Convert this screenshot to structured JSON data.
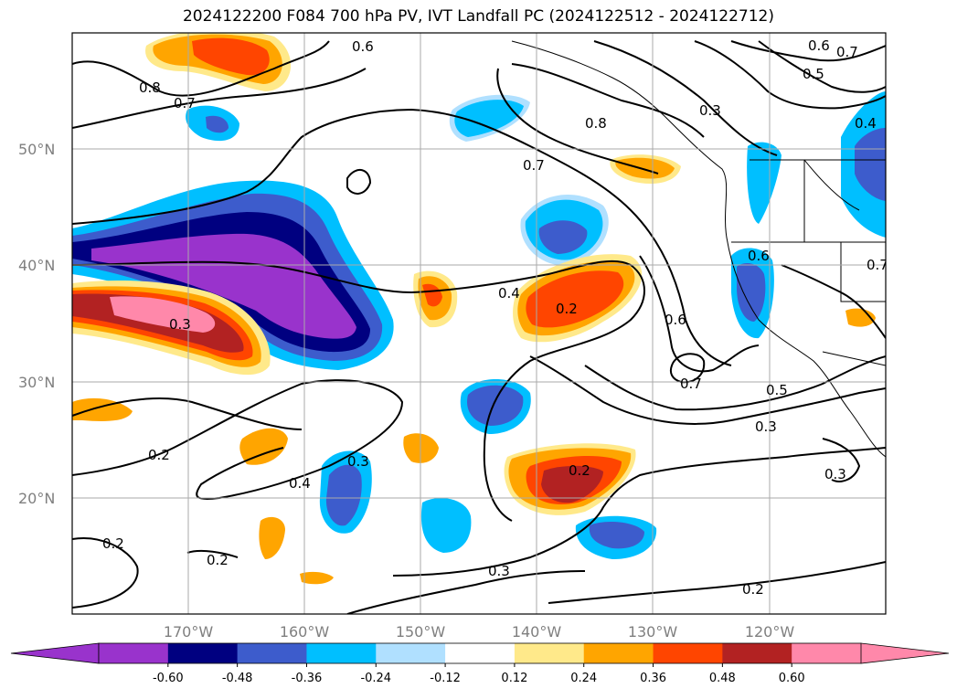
{
  "title": "2024122200 F084 700 hPa PV, IVT Landfall PC (2024122512 - 2024122712)",
  "map": {
    "lat_ticks": [
      "50°N",
      "40°N",
      "30°N",
      "20°N"
    ],
    "lon_ticks": [
      "170°W",
      "160°W",
      "150°W",
      "140°W",
      "130°W",
      "120°W"
    ],
    "contour_labels": [
      "0.8",
      "0.7",
      "0.6",
      "0.7",
      "0.8",
      "0.7",
      "0.5",
      "0.3",
      "0.4",
      "0.6",
      "0.4",
      "0.2",
      "0.3",
      "0.6",
      "0.7",
      "0.5",
      "0.3",
      "0.6",
      "0.7",
      "0.2",
      "0.4",
      "0.3",
      "0.2",
      "0.2",
      "0.2",
      "0.3",
      "0.2",
      "0.3"
    ]
  },
  "colorbar": {
    "labels": [
      "-0.60",
      "-0.48",
      "-0.36",
      "-0.24",
      "-0.12",
      "0.12",
      "0.24",
      "0.36",
      "0.48",
      "0.60"
    ],
    "colors": [
      "#9933cc",
      "#000080",
      "#3d5ccc",
      "#00bfff",
      "#b0e0ff",
      "#ffffff",
      "#ffe98a",
      "#ffa500",
      "#ff4500",
      "#b22222",
      "#ff88aa",
      "#ff88aa"
    ],
    "under_color": "#9933cc",
    "over_color": "#ff88aa"
  }
}
